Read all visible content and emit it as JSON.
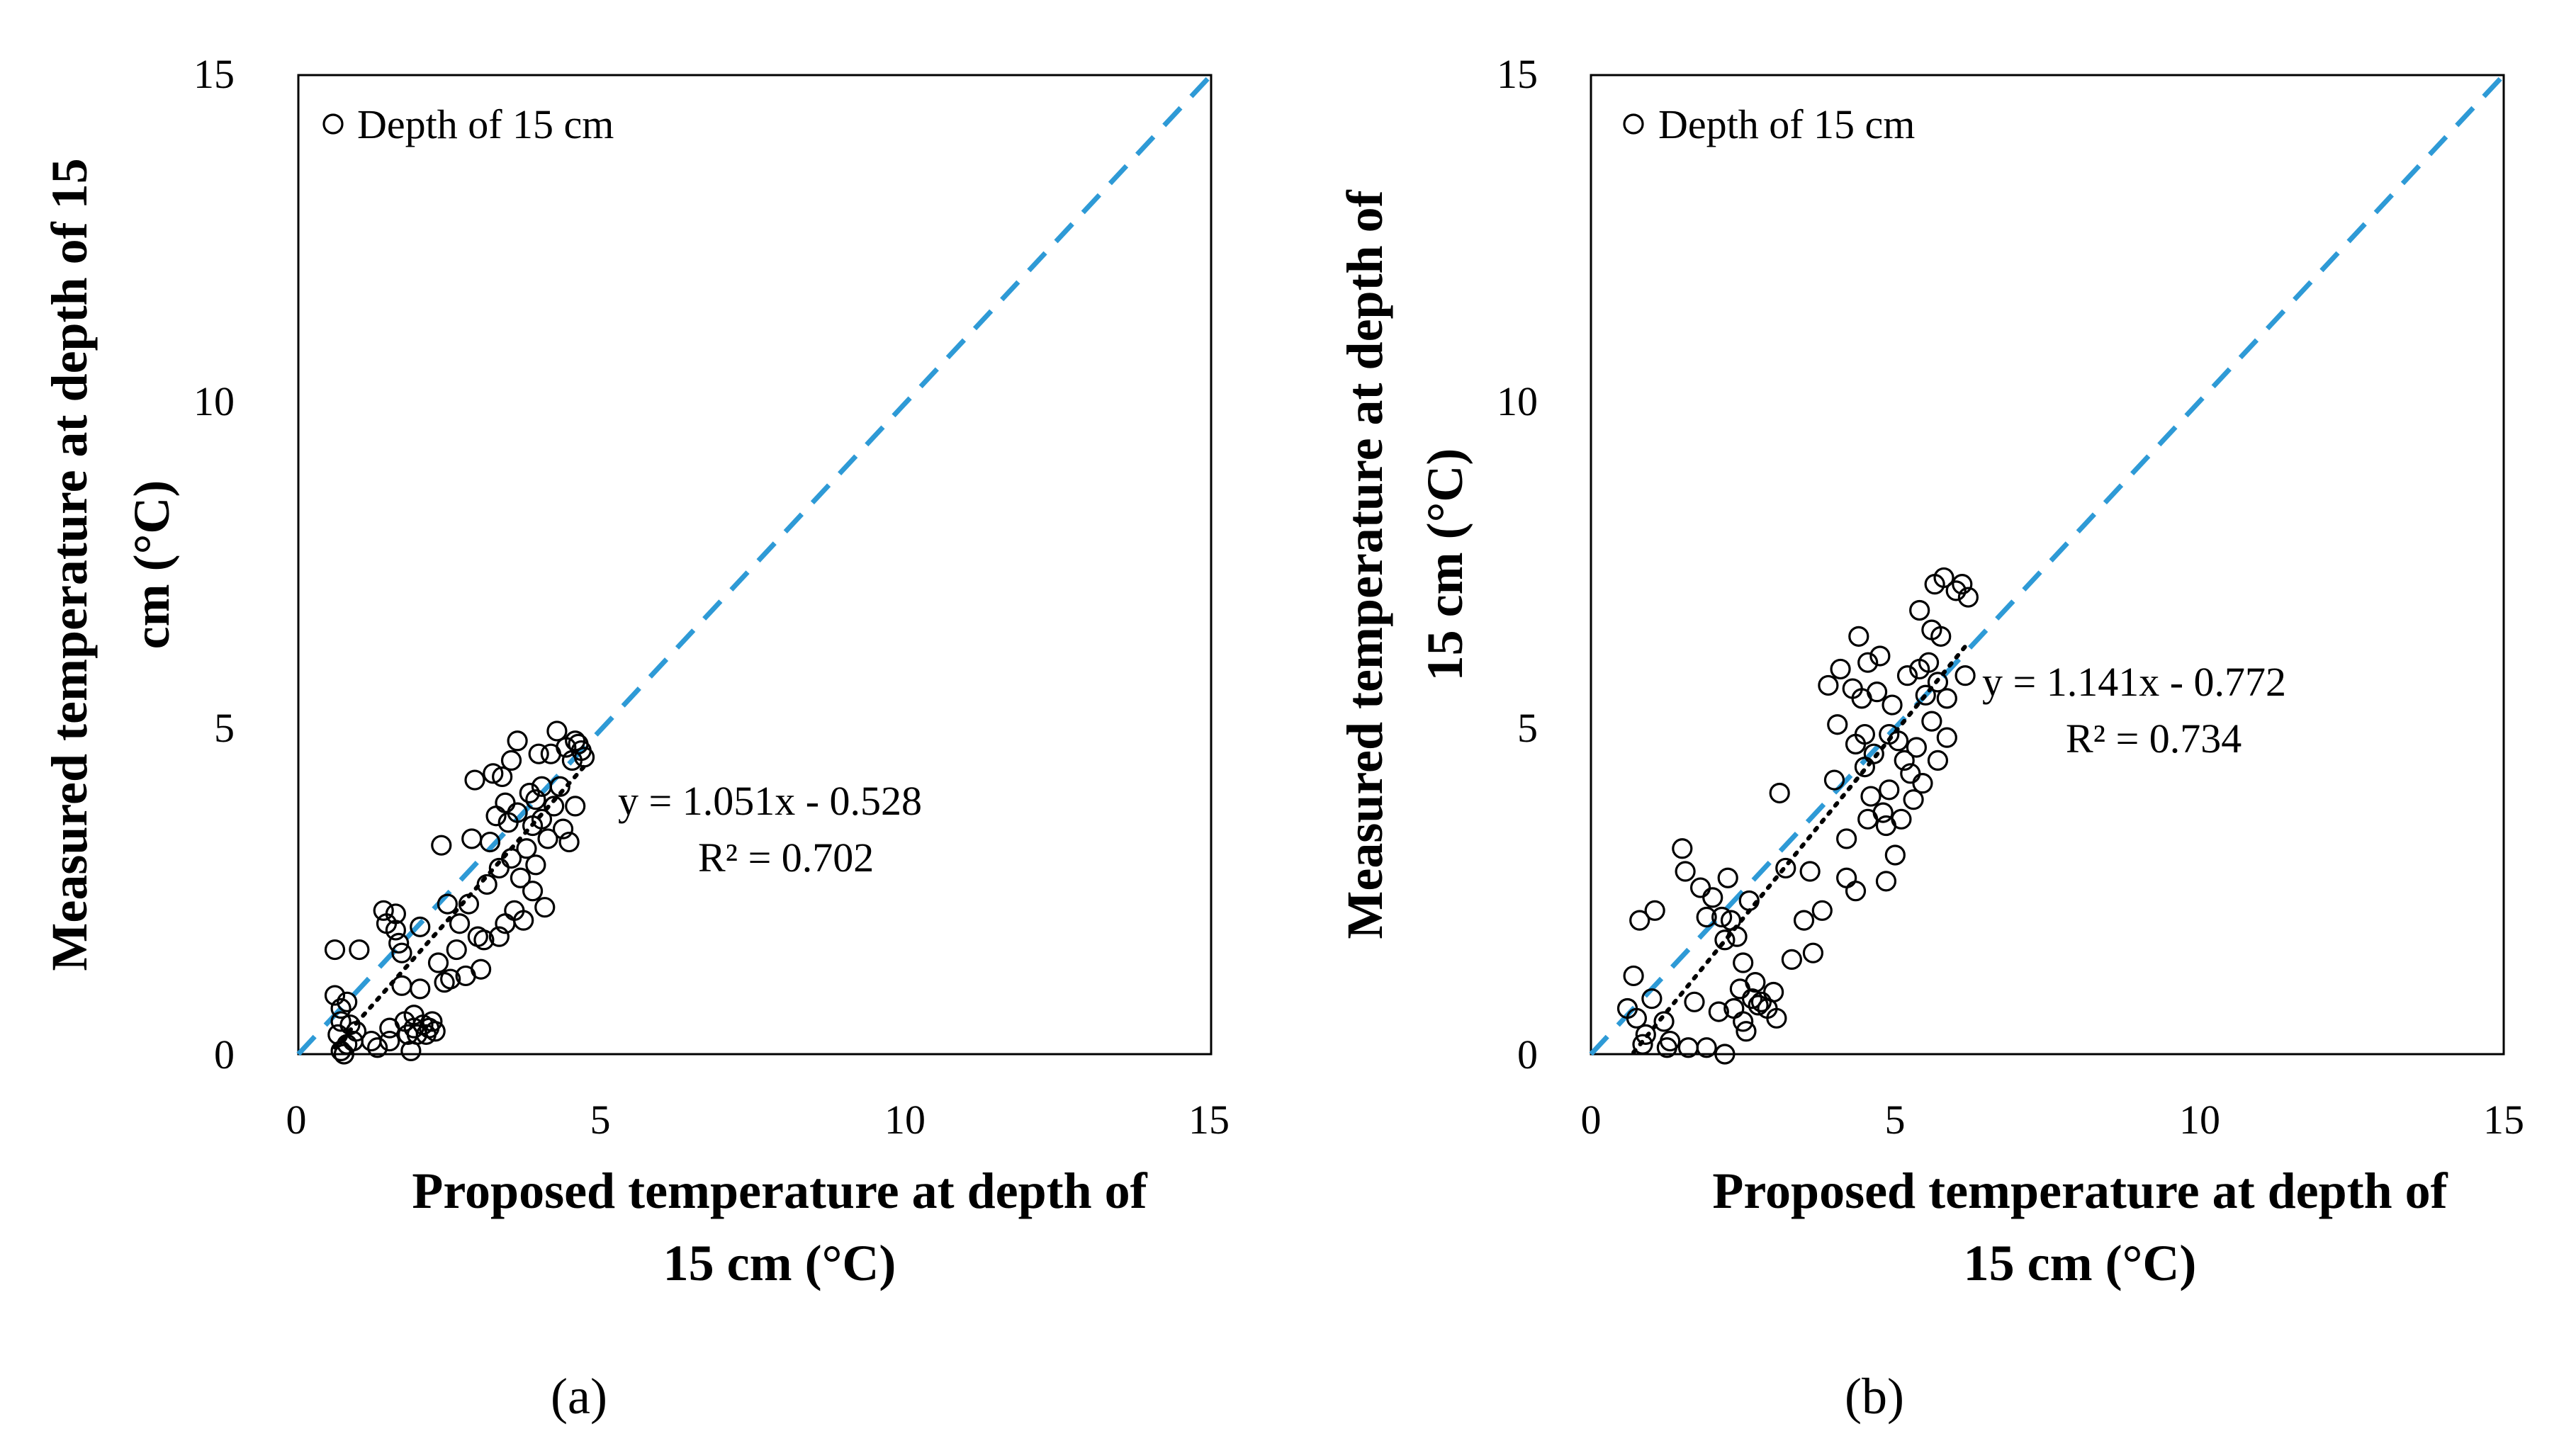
{
  "chart_data": [
    {
      "type": "scatter",
      "panel_label": "(a)",
      "xlabel": [
        "Proposed temperature at depth of",
        "15 cm (°C)"
      ],
      "ylabel": [
        "Measured temperature at depth of 15",
        "cm (°C)"
      ],
      "xlim": [
        0,
        15
      ],
      "ylim": [
        0,
        15
      ],
      "xticks": [
        "0",
        "5",
        "10",
        "15"
      ],
      "yticks": [
        "0",
        "5",
        "10",
        "15"
      ],
      "legend": "Depth of 15 cm",
      "legend_position": "top-left",
      "equation": "y = 1.051x - 0.528",
      "r2_label": "R² = 0.702",
      "one_to_one": [
        0,
        15
      ],
      "trendline": {
        "slope": 1.051,
        "intercept": -0.528,
        "x_range": [
          0.6,
          4.7
        ]
      },
      "colors": {
        "one_to_one": "#2E9AD6",
        "points": "#000000"
      },
      "series": [
        {
          "name": "Depth of 15 cm",
          "points": [
            [
              0.6,
              1.6
            ],
            [
              0.6,
              0.9
            ],
            [
              0.7,
              0.7
            ],
            [
              0.7,
              0.5
            ],
            [
              0.65,
              0.3
            ],
            [
              0.8,
              0.15
            ],
            [
              0.7,
              0.05
            ],
            [
              0.75,
              0.0
            ],
            [
              0.9,
              0.2
            ],
            [
              0.85,
              0.45
            ],
            [
              0.8,
              0.8
            ],
            [
              0.95,
              0.35
            ],
            [
              1.0,
              1.6
            ],
            [
              1.2,
              0.2
            ],
            [
              1.3,
              0.1
            ],
            [
              1.4,
              2.2
            ],
            [
              1.45,
              2.0
            ],
            [
              1.5,
              0.4
            ],
            [
              1.5,
              0.2
            ],
            [
              1.6,
              2.15
            ],
            [
              1.6,
              1.9
            ],
            [
              1.65,
              1.7
            ],
            [
              1.7,
              1.55
            ],
            [
              1.7,
              1.05
            ],
            [
              1.75,
              0.5
            ],
            [
              1.8,
              0.3
            ],
            [
              1.85,
              0.05
            ],
            [
              1.9,
              0.6
            ],
            [
              1.9,
              0.4
            ],
            [
              1.95,
              0.3
            ],
            [
              2.0,
              1.95
            ],
            [
              2.0,
              1.0
            ],
            [
              2.05,
              0.45
            ],
            [
              2.1,
              0.3
            ],
            [
              2.15,
              0.4
            ],
            [
              2.2,
              0.5
            ],
            [
              2.25,
              0.35
            ],
            [
              2.3,
              1.4
            ],
            [
              2.35,
              3.2
            ],
            [
              2.4,
              1.1
            ],
            [
              2.45,
              2.3
            ],
            [
              2.5,
              1.15
            ],
            [
              2.6,
              1.6
            ],
            [
              2.65,
              2.0
            ],
            [
              2.75,
              1.2
            ],
            [
              2.8,
              2.3
            ],
            [
              2.85,
              3.3
            ],
            [
              2.9,
              4.2
            ],
            [
              2.95,
              1.8
            ],
            [
              3.0,
              1.3
            ],
            [
              3.05,
              1.75
            ],
            [
              3.1,
              2.6
            ],
            [
              3.15,
              3.25
            ],
            [
              3.2,
              4.3
            ],
            [
              3.25,
              3.65
            ],
            [
              3.3,
              2.85
            ],
            [
              3.3,
              1.8
            ],
            [
              3.35,
              4.25
            ],
            [
              3.4,
              3.85
            ],
            [
              3.4,
              2.0
            ],
            [
              3.45,
              3.55
            ],
            [
              3.5,
              4.5
            ],
            [
              3.5,
              3.0
            ],
            [
              3.55,
              2.2
            ],
            [
              3.6,
              4.8
            ],
            [
              3.6,
              3.7
            ],
            [
              3.65,
              2.7
            ],
            [
              3.7,
              2.05
            ],
            [
              3.75,
              3.15
            ],
            [
              3.8,
              4.0
            ],
            [
              3.85,
              3.5
            ],
            [
              3.85,
              2.5
            ],
            [
              3.9,
              3.9
            ],
            [
              3.9,
              2.9
            ],
            [
              3.95,
              4.6
            ],
            [
              4.0,
              4.1
            ],
            [
              4.0,
              3.6
            ],
            [
              4.05,
              2.25
            ],
            [
              4.1,
              3.3
            ],
            [
              4.15,
              4.6
            ],
            [
              4.2,
              3.8
            ],
            [
              4.25,
              4.95
            ],
            [
              4.3,
              4.1
            ],
            [
              4.35,
              3.45
            ],
            [
              4.4,
              4.7
            ],
            [
              4.45,
              3.25
            ],
            [
              4.5,
              4.5
            ],
            [
              4.55,
              3.8
            ],
            [
              4.6,
              4.75
            ],
            [
              4.65,
              4.65
            ],
            [
              4.7,
              4.55
            ],
            [
              4.55,
              4.8
            ]
          ]
        }
      ]
    },
    {
      "type": "scatter",
      "panel_label": "(b)",
      "xlabel": [
        "Proposed temperature at depth of",
        "15 cm (°C)"
      ],
      "ylabel": [
        "Measured temperature at depth of",
        "15 cm (°C)"
      ],
      "xlim": [
        0,
        15
      ],
      "ylim": [
        0,
        15
      ],
      "xticks": [
        "0",
        "5",
        "10",
        "15"
      ],
      "yticks": [
        "0",
        "5",
        "10",
        "15"
      ],
      "legend": "Depth of 15 cm",
      "legend_position": "top-left",
      "equation": "y = 1.141x - 0.772",
      "r2_label": "R² = 0.734",
      "one_to_one": [
        0,
        15
      ],
      "trendline": {
        "slope": 1.141,
        "intercept": -0.772,
        "x_range": [
          0.7,
          6.2
        ]
      },
      "colors": {
        "one_to_one": "#2E9AD6",
        "points": "#000000"
      },
      "series": [
        {
          "name": "Depth of 15 cm",
          "points": [
            [
              0.6,
              0.7
            ],
            [
              0.7,
              1.2
            ],
            [
              0.75,
              0.55
            ],
            [
              0.8,
              2.05
            ],
            [
              0.85,
              0.15
            ],
            [
              0.9,
              0.3
            ],
            [
              1.0,
              0.85
            ],
            [
              1.05,
              2.2
            ],
            [
              1.2,
              0.5
            ],
            [
              1.25,
              0.1
            ],
            [
              1.3,
              0.2
            ],
            [
              1.5,
              3.15
            ],
            [
              1.55,
              2.8
            ],
            [
              1.6,
              0.1
            ],
            [
              1.7,
              0.8
            ],
            [
              1.8,
              2.55
            ],
            [
              1.9,
              0.1
            ],
            [
              1.9,
              2.1
            ],
            [
              2.0,
              2.4
            ],
            [
              2.1,
              0.65
            ],
            [
              2.15,
              2.1
            ],
            [
              2.2,
              1.75
            ],
            [
              2.2,
              0.0
            ],
            [
              2.25,
              2.7
            ],
            [
              2.3,
              2.05
            ],
            [
              2.35,
              0.7
            ],
            [
              2.4,
              1.8
            ],
            [
              2.45,
              1.0
            ],
            [
              2.5,
              1.4
            ],
            [
              2.5,
              0.5
            ],
            [
              2.55,
              0.35
            ],
            [
              2.6,
              2.35
            ],
            [
              2.65,
              0.85
            ],
            [
              2.7,
              1.1
            ],
            [
              2.75,
              0.75
            ],
            [
              2.8,
              0.8
            ],
            [
              2.9,
              0.7
            ],
            [
              3.0,
              0.95
            ],
            [
              3.05,
              0.55
            ],
            [
              3.1,
              4.0
            ],
            [
              3.2,
              2.85
            ],
            [
              3.3,
              1.45
            ],
            [
              3.5,
              2.05
            ],
            [
              3.6,
              2.8
            ],
            [
              3.65,
              1.55
            ],
            [
              3.8,
              2.2
            ],
            [
              3.9,
              5.65
            ],
            [
              4.0,
              4.2
            ],
            [
              4.05,
              5.05
            ],
            [
              4.1,
              5.9
            ],
            [
              4.2,
              3.3
            ],
            [
              4.2,
              2.7
            ],
            [
              4.3,
              5.6
            ],
            [
              4.35,
              4.75
            ],
            [
              4.35,
              2.5
            ],
            [
              4.4,
              6.4
            ],
            [
              4.45,
              5.45
            ],
            [
              4.5,
              4.9
            ],
            [
              4.5,
              4.4
            ],
            [
              4.55,
              6.0
            ],
            [
              4.55,
              3.6
            ],
            [
              4.6,
              3.95
            ],
            [
              4.65,
              4.6
            ],
            [
              4.7,
              5.55
            ],
            [
              4.75,
              6.1
            ],
            [
              4.8,
              3.7
            ],
            [
              4.85,
              3.5
            ],
            [
              4.85,
              2.65
            ],
            [
              4.9,
              4.9
            ],
            [
              4.9,
              4.05
            ],
            [
              4.95,
              5.35
            ],
            [
              5.0,
              3.05
            ],
            [
              5.05,
              4.8
            ],
            [
              5.1,
              3.6
            ],
            [
              5.15,
              4.5
            ],
            [
              5.2,
              5.8
            ],
            [
              5.25,
              4.3
            ],
            [
              5.3,
              3.9
            ],
            [
              5.35,
              4.7
            ],
            [
              5.4,
              5.9
            ],
            [
              5.4,
              6.8
            ],
            [
              5.45,
              4.15
            ],
            [
              5.5,
              5.5
            ],
            [
              5.55,
              6.0
            ],
            [
              5.6,
              5.1
            ],
            [
              5.6,
              6.5
            ],
            [
              5.65,
              7.2
            ],
            [
              5.7,
              4.5
            ],
            [
              5.7,
              5.7
            ],
            [
              5.75,
              6.4
            ],
            [
              5.8,
              7.3
            ],
            [
              5.85,
              5.45
            ],
            [
              5.85,
              4.85
            ],
            [
              6.0,
              7.1
            ],
            [
              6.1,
              7.2
            ],
            [
              6.15,
              5.8
            ],
            [
              6.2,
              7.0
            ]
          ]
        }
      ]
    }
  ]
}
